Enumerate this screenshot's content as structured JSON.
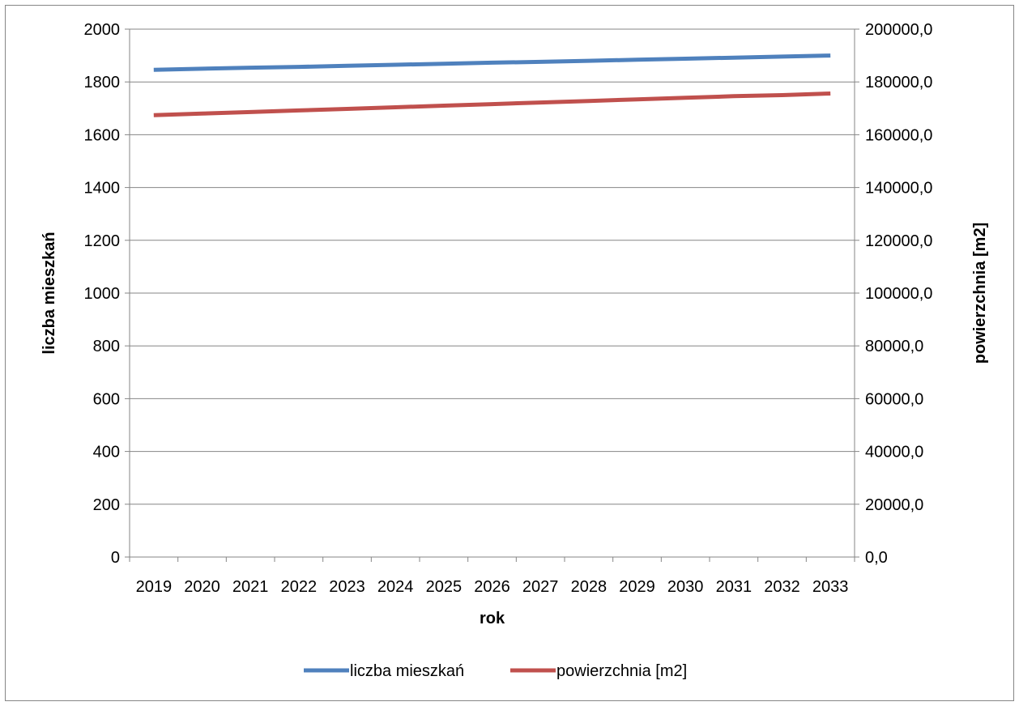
{
  "chart_data": {
    "type": "line",
    "title": "",
    "xlabel": "rok",
    "ylabel": "liczba mieszkań",
    "y2label": "powierzchnia [m2]",
    "categories": [
      "2019",
      "2020",
      "2021",
      "2022",
      "2023",
      "2024",
      "2025",
      "2026",
      "2027",
      "2028",
      "2029",
      "2030",
      "2031",
      "2032",
      "2033"
    ],
    "ylim": [
      0,
      2000
    ],
    "y2lim": [
      0,
      200000
    ],
    "y_ticks": [
      "0",
      "200",
      "400",
      "600",
      "800",
      "1000",
      "1200",
      "1400",
      "1600",
      "1800",
      "2000"
    ],
    "y2_ticks": [
      "0,0",
      "20000,0",
      "40000,0",
      "60000,0",
      "80000,0",
      "100000,0",
      "120000,0",
      "140000,0",
      "160000,0",
      "180000,0",
      "200000,0"
    ],
    "grid": true,
    "legend_position": "bottom",
    "series": [
      {
        "name": "liczba mieszkań",
        "axis": "left",
        "color": "#4F81BD",
        "values": [
          1846,
          1850,
          1854,
          1857,
          1861,
          1865,
          1869,
          1873,
          1876,
          1880,
          1884,
          1888,
          1892,
          1896,
          1900
        ]
      },
      {
        "name": "powierzchnia [m2]",
        "axis": "right",
        "color": "#C0504D",
        "values": [
          167400,
          168000,
          168600,
          169200,
          169800,
          170400,
          171000,
          171600,
          172200,
          172800,
          173400,
          174000,
          174600,
          175000,
          175600
        ]
      }
    ]
  }
}
